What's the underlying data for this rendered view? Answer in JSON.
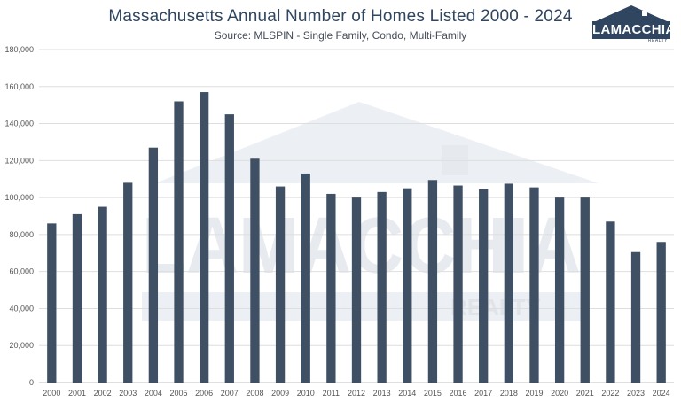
{
  "chart_data": {
    "type": "bar",
    "title": "Massachusetts Annual Number of Homes Listed 2000 - 2024",
    "subtitle": "Source: MLSPIN - Single Family, Condo, Multi-Family",
    "xlabel": "",
    "ylabel": "",
    "ylim": [
      0,
      180000
    ],
    "yticks": [
      "0",
      "20,000",
      "40,000",
      "60,000",
      "80,000",
      "100,000",
      "120,000",
      "140,000",
      "160,000",
      "180,000"
    ],
    "grid": true,
    "categories": [
      "2000",
      "2001",
      "2002",
      "2003",
      "2004",
      "2005",
      "2006",
      "2007",
      "2008",
      "2009",
      "2010",
      "2011",
      "2012",
      "2013",
      "2014",
      "2015",
      "2016",
      "2017",
      "2018",
      "2019",
      "2020",
      "2021",
      "2022",
      "2023",
      "2024"
    ],
    "values": [
      86000,
      91000,
      95000,
      108000,
      127000,
      152000,
      157000,
      145000,
      121000,
      106000,
      113000,
      102000,
      100000,
      103000,
      105000,
      109500,
      106500,
      104500,
      107500,
      105500,
      100000,
      100000,
      87000,
      70500,
      76000
    ],
    "bar_color": "#3f5064"
  },
  "logo": {
    "text": "LAMACCHIA",
    "subtext": "REALTY"
  },
  "watermark": {
    "text": "LAMACCHIA",
    "subtext": "REALTY",
    "color": "#e3e7ec"
  }
}
